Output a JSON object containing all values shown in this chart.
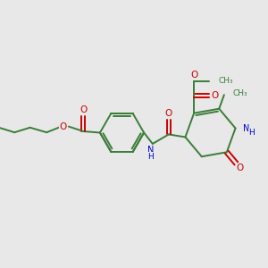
{
  "bg_color": "#e8e8e8",
  "bond_color": "#3a7d3a",
  "o_color": "#cc0000",
  "n_color": "#0000cc",
  "line_width": 1.4,
  "figsize": [
    3.0,
    3.0
  ],
  "dpi": 100,
  "xlim": [
    0,
    10
  ],
  "ylim": [
    0,
    10
  ]
}
